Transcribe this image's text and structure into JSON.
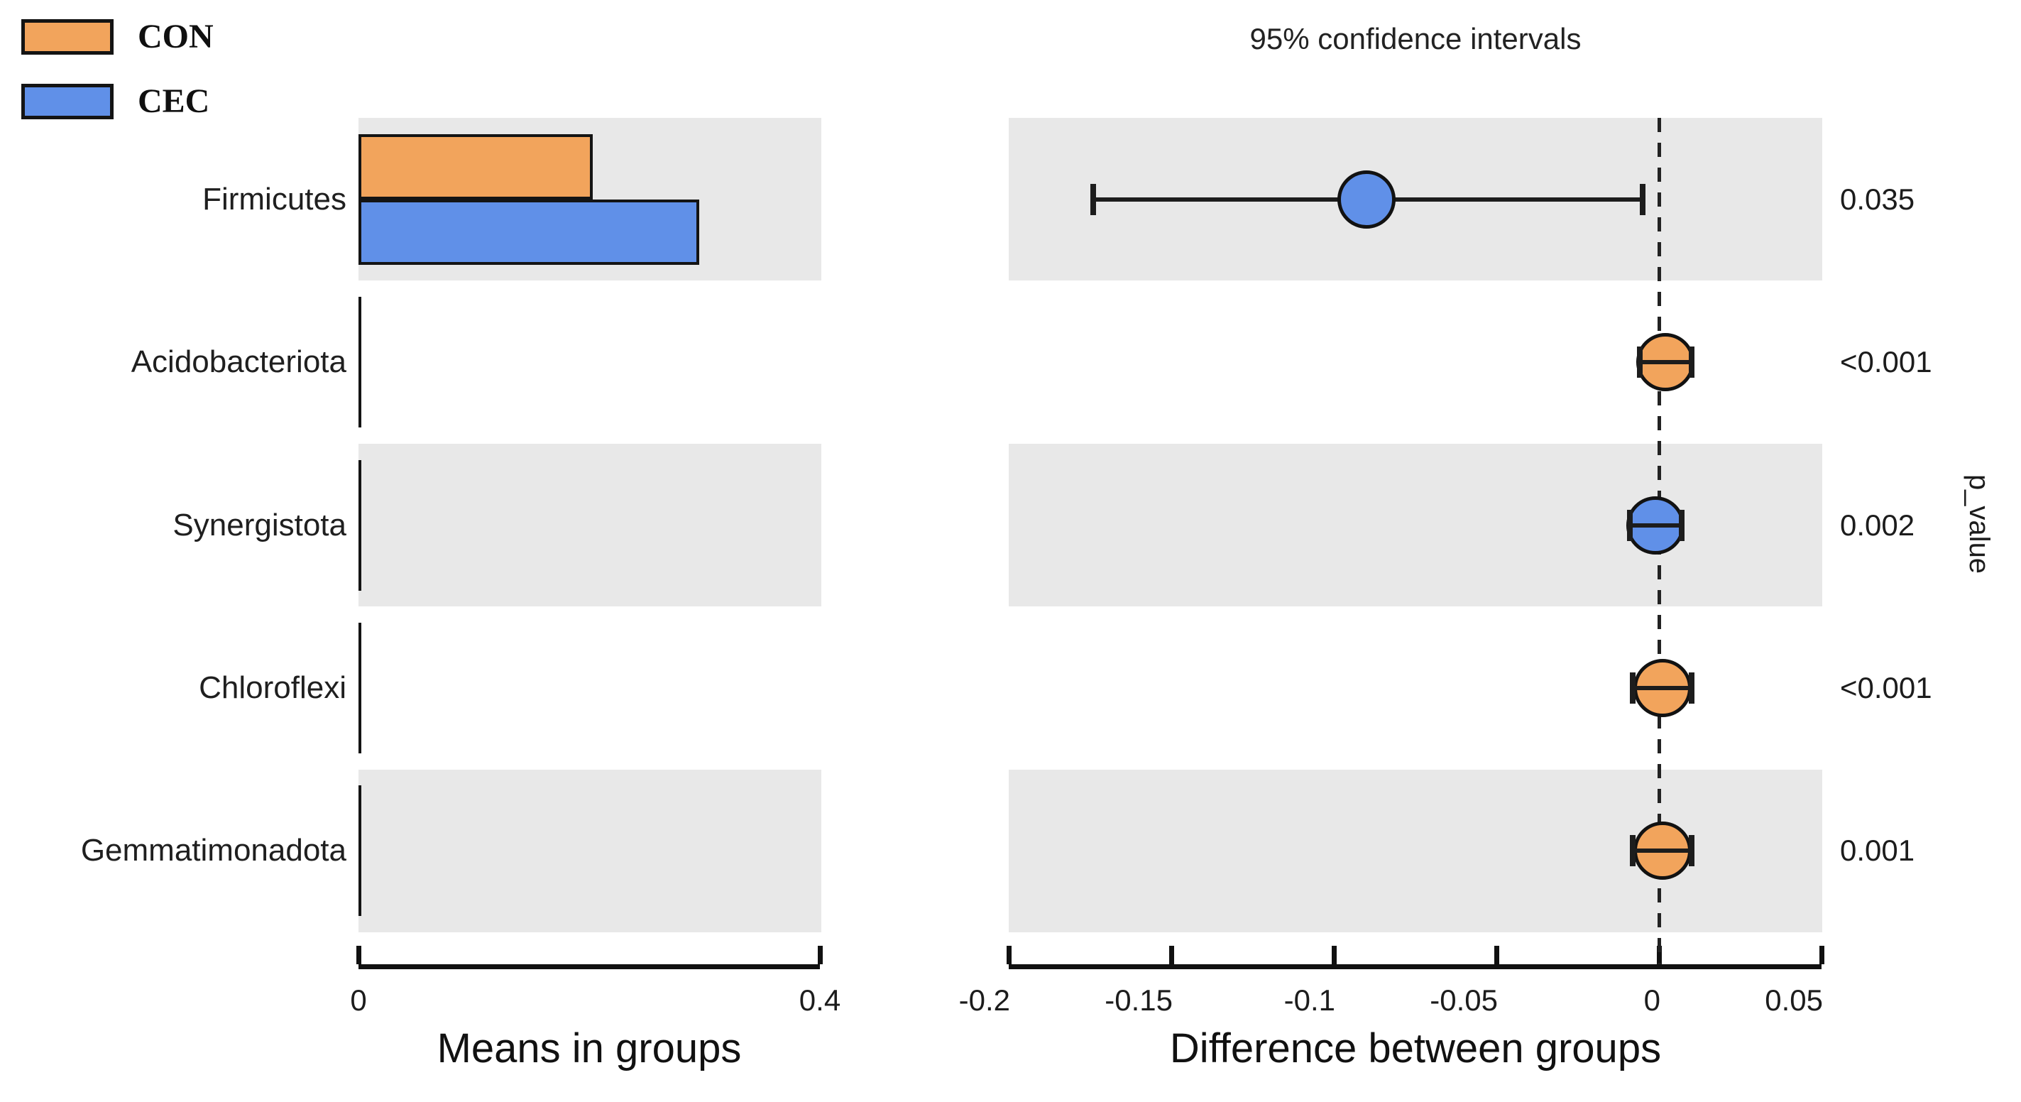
{
  "colors": {
    "con_orange": "#f2a45c",
    "cec_blue": "#6090e8",
    "row_stripe": "#e8e8e8",
    "ink": "#141414",
    "background": "#ffffff"
  },
  "legend": {
    "items": [
      {
        "label": "CON",
        "color": "#f2a45c"
      },
      {
        "label": "CEC",
        "color": "#6090e8"
      }
    ]
  },
  "chart_data": {
    "type": "bar",
    "subtype": "STAMP extended error bar plot (grouped mean bars + difference confidence intervals)",
    "categories": [
      "Firmicutes",
      "Acidobacteriota",
      "Synergistota",
      "Chloroflexi",
      "Gemmatimonadota"
    ],
    "groups": [
      {
        "name": "CON",
        "color": "#f2a45c"
      },
      {
        "name": "CEC",
        "color": "#6090e8"
      }
    ],
    "left_panel": {
      "title": "Means in groups",
      "xlim": [
        0,
        0.4
      ],
      "ticks": [
        {
          "label": "0",
          "value": 0
        },
        {
          "label": "0.4",
          "value": 0.4
        }
      ],
      "series": [
        {
          "name": "CON",
          "values": [
            0.208,
            0.003,
            0.002,
            0.003,
            0.003
          ]
        },
        {
          "name": "CEC",
          "values": [
            0.3,
            0.002,
            0.003,
            0.002,
            0.002
          ]
        }
      ]
    },
    "right_panel": {
      "header": "95% confidence intervals",
      "title": "Difference between groups",
      "side_label": "p_value",
      "xlim": [
        -0.2,
        0.05
      ],
      "zero_line": 0,
      "ticks": [
        {
          "label": "-0.2",
          "value": -0.2
        },
        {
          "label": "-0.15",
          "value": -0.15
        },
        {
          "label": "-0.1",
          "value": -0.1
        },
        {
          "label": "-0.05",
          "value": -0.05
        },
        {
          "label": "0",
          "value": 0
        },
        {
          "label": "0.05",
          "value": 0.05
        }
      ],
      "points": [
        {
          "category": "Firmicutes",
          "mean": -0.09,
          "ci": [
            -0.174,
            -0.005
          ],
          "enriched": "CEC",
          "color": "#6090e8",
          "p_value": "0.035"
        },
        {
          "category": "Acidobacteriota",
          "mean": 0.002,
          "ci": [
            -0.006,
            0.01
          ],
          "enriched": "CON",
          "color": "#f2a45c",
          "p_value": "<0.001"
        },
        {
          "category": "Synergistota",
          "mean": -0.001,
          "ci": [
            -0.009,
            0.007
          ],
          "enriched": "CEC",
          "color": "#6090e8",
          "p_value": "0.002"
        },
        {
          "category": "Chloroflexi",
          "mean": 0.001,
          "ci": [
            -0.008,
            0.01
          ],
          "enriched": "CON",
          "color": "#f2a45c",
          "p_value": "<0.001"
        },
        {
          "category": "Gemmatimonadota",
          "mean": 0.001,
          "ci": [
            -0.008,
            0.01
          ],
          "enriched": "CON",
          "color": "#f2a45c",
          "p_value": "0.001"
        }
      ]
    }
  }
}
